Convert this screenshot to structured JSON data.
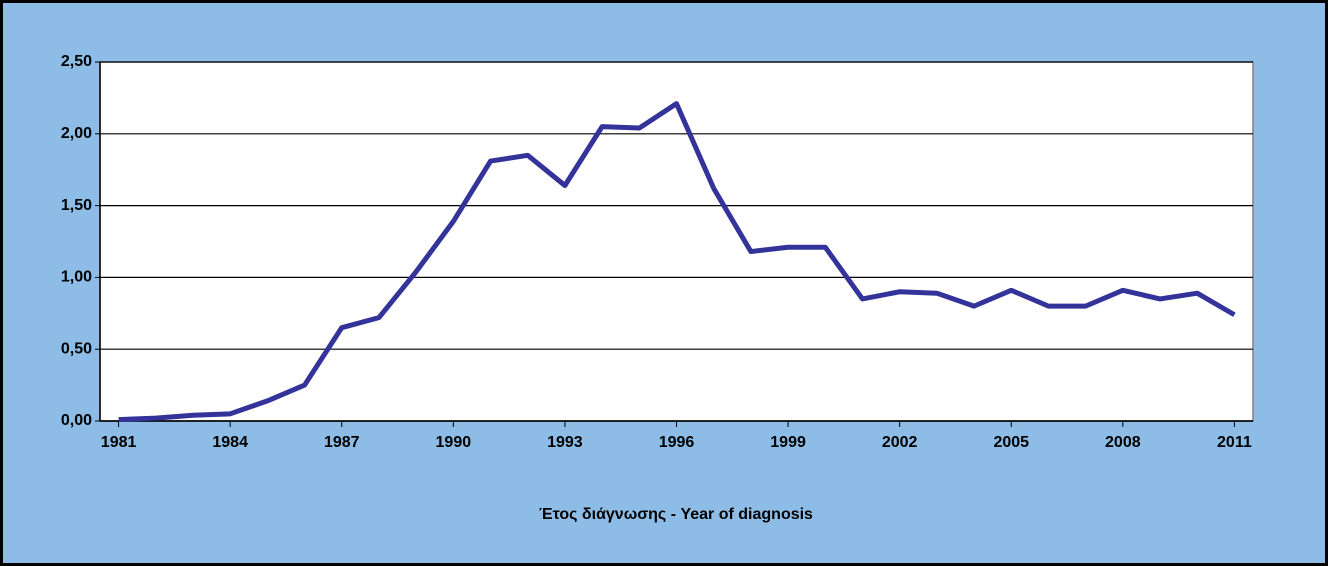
{
  "chart_data": {
    "type": "line",
    "x": [
      1981,
      1982,
      1983,
      1984,
      1985,
      1986,
      1987,
      1988,
      1989,
      1990,
      1991,
      1992,
      1993,
      1994,
      1995,
      1996,
      1997,
      1998,
      1999,
      2000,
      2001,
      2002,
      2003,
      2004,
      2005,
      2006,
      2007,
      2008,
      2009,
      2010,
      2011
    ],
    "series": [
      {
        "color": "#333399",
        "values": [
          0.01,
          0.02,
          0.04,
          0.05,
          0.14,
          0.25,
          0.65,
          0.72,
          1.04,
          1.39,
          1.81,
          1.85,
          1.64,
          2.05,
          2.04,
          2.21,
          1.62,
          1.18,
          1.21,
          1.21,
          0.85,
          0.9,
          0.89,
          0.8,
          0.91,
          0.8,
          0.8,
          0.91,
          0.85,
          0.89,
          0.74
        ]
      }
    ],
    "xlabel": "Έτος διάγνωσης - Year of diagnosis",
    "xlim": [
      1980.5,
      2011.5
    ],
    "xticks": [
      1981,
      1984,
      1987,
      1990,
      1993,
      1996,
      1999,
      2002,
      2005,
      2008,
      2011
    ],
    "ylim": [
      0,
      2.5
    ],
    "yticks": [
      {
        "value": 0,
        "label": "0,00"
      },
      {
        "value": 0.5,
        "label": "0,50"
      },
      {
        "value": 1,
        "label": "1,00"
      },
      {
        "value": 1.5,
        "label": "1,50"
      },
      {
        "value": 2,
        "label": "2,00"
      },
      {
        "value": 2.5,
        "label": "2,50"
      }
    ],
    "grid": true
  }
}
